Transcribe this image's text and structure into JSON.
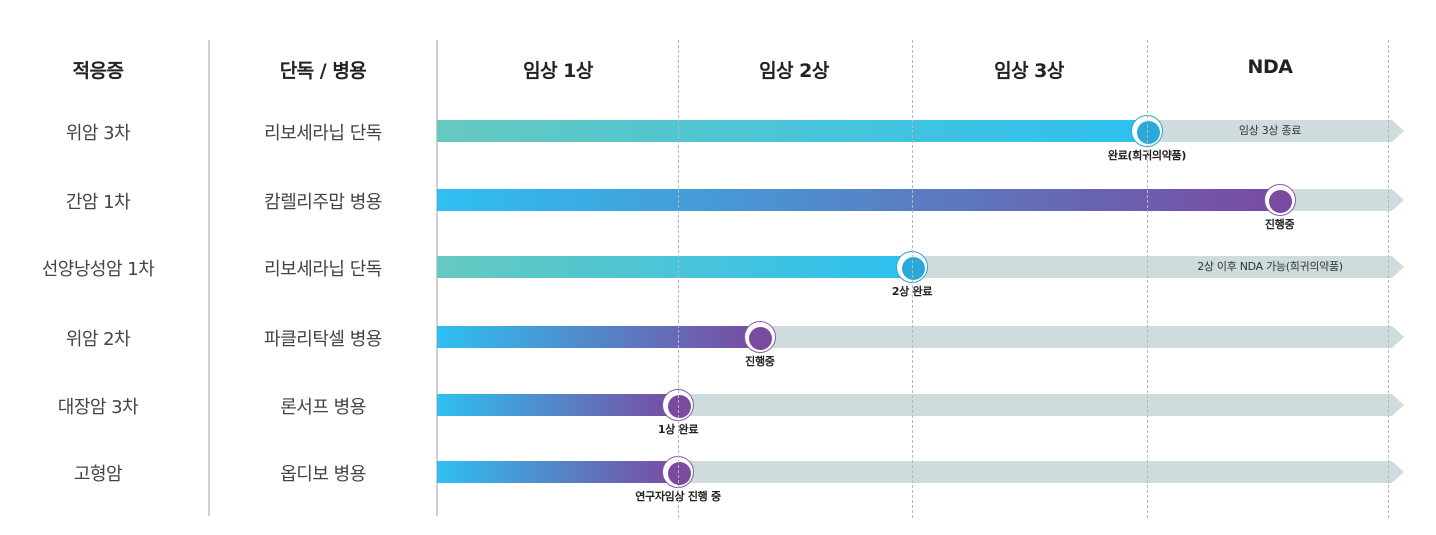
{
  "header": {
    "indication": "적응증",
    "regimen": "단독 / 병용",
    "phases": [
      "임상 1상",
      "임상 2상",
      "임상 3상",
      "NDA"
    ]
  },
  "colors": {
    "track": "#cfdcdd",
    "teal_start": "#66c9c0",
    "cyan": "#2ec0f0",
    "purple": "#7a4aa0",
    "ring_teal": "#2aa9d8",
    "ring_purple": "#8a5ab0"
  },
  "rows": [
    {
      "indication": "위암 3차",
      "regimen": "리보세라닙 단독",
      "progress_phases": 3.0,
      "style": "teal",
      "milestone_label": "완료(희귀의약품)",
      "track_label": "임상 3상 종료"
    },
    {
      "indication": "간암 1차",
      "regimen": "캄렐리주맙 병용",
      "progress_phases": 3.55,
      "style": "purple",
      "milestone_label": "진행중",
      "track_label": ""
    },
    {
      "indication": "선양낭성암 1차",
      "regimen": "리보세라닙 단독",
      "progress_phases": 2.0,
      "style": "teal",
      "milestone_label": "2상 완료",
      "track_label": "2상 이후 NDA 가능(희귀의약품)"
    },
    {
      "indication": "위암 2차",
      "regimen": "파클리탁셀 병용",
      "progress_phases": 1.35,
      "style": "purple",
      "milestone_label": "진행중",
      "track_label": ""
    },
    {
      "indication": "대장암 3차",
      "regimen": "론서프 병용",
      "progress_phases": 1.0,
      "style": "purple",
      "milestone_label": "1상 완료",
      "track_label": ""
    },
    {
      "indication": "고형암",
      "regimen": "옵디보 병용",
      "progress_phases": 1.0,
      "style": "purple",
      "milestone_label": "연구자임상 진행 중",
      "track_label": ""
    }
  ]
}
